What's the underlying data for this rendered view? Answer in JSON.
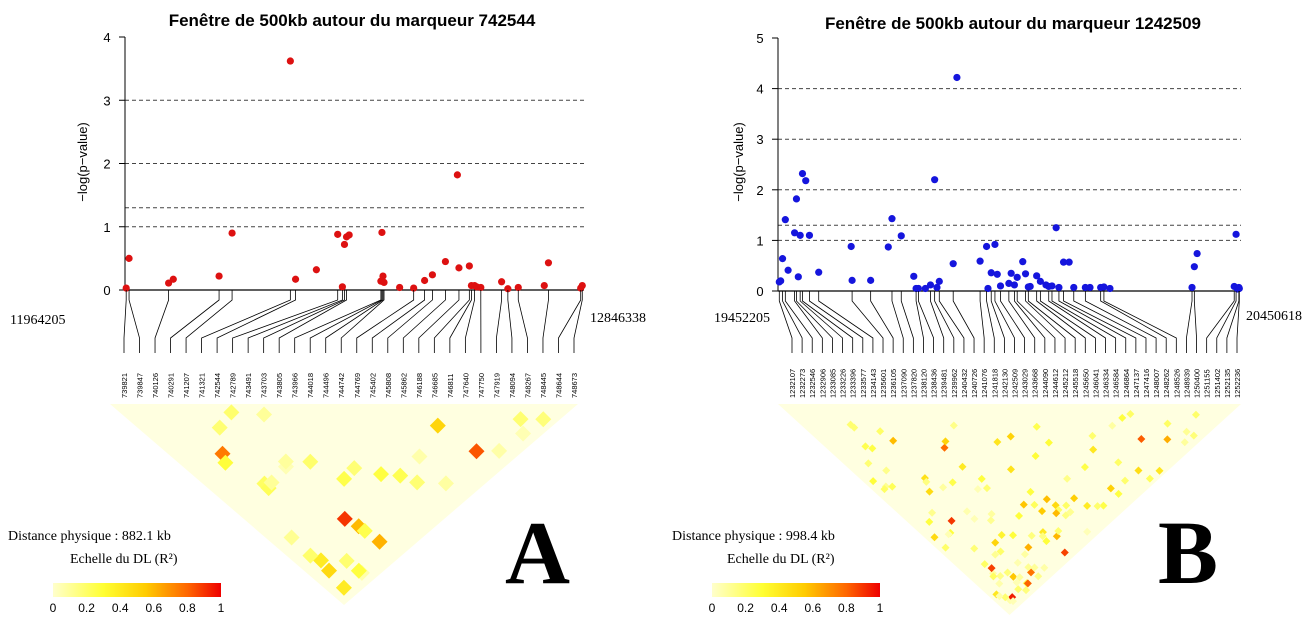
{
  "panels": [
    {
      "letter": "A",
      "title": "Fenêtre de 500kb autour du marqueur 742544",
      "ylabel": "−log(p−value)",
      "pos_start": "11964205",
      "pos_end": "12846338",
      "distance_label": "Distance physique : 882.1 kb",
      "ld_scale_label": "Echelle du DL (R²)",
      "scale_ticks": [
        "0",
        "0.2",
        "0.4",
        "0.6",
        "0.8",
        "1"
      ]
    },
    {
      "letter": "B",
      "title": "Fenêtre de 500kb autour du marqueur 1242509",
      "ylabel": "−log(p−value)",
      "pos_start": "19452205",
      "pos_end": "20450618",
      "distance_label": "Distance physique : 998.4 kb",
      "ld_scale_label": "Echelle du DL (R²)",
      "scale_ticks": [
        "0",
        "0.2",
        "0.4",
        "0.6",
        "0.8",
        "1"
      ]
    }
  ],
  "chart_data": [
    {
      "type": "scatter",
      "title": "Fenêtre de 500kb autour du marqueur 742544",
      "ylabel": "−log(p−value)",
      "ylim": [
        0,
        4
      ],
      "yticks": [
        0,
        1,
        2,
        3,
        4
      ],
      "hlines": [
        1,
        1.3,
        2,
        3
      ],
      "xlim": [
        11964205,
        12846338
      ],
      "color": "#dd1111",
      "x": [
        11966500,
        11972000,
        12048000,
        12057000,
        12145000,
        12170000,
        12282000,
        12292000,
        12332000,
        12373000,
        12382000,
        12386000,
        12390000,
        12395000,
        12456000,
        12458000,
        12460000,
        12462000,
        12492000,
        12519000,
        12540000,
        12555000,
        12580000,
        12603000,
        12606000,
        12626000,
        12630000,
        12636000,
        12640000,
        12648000,
        12688000,
        12700000,
        12720000,
        12770000,
        12778000,
        12840000,
        12843000
      ],
      "y": [
        0.03,
        0.5,
        0.11,
        0.17,
        0.22,
        0.9,
        3.62,
        0.17,
        0.32,
        0.88,
        0.05,
        0.72,
        0.84,
        0.87,
        0.14,
        0.91,
        0.22,
        0.12,
        0.04,
        0.03,
        0.15,
        0.24,
        0.45,
        1.82,
        0.35,
        0.38,
        0.07,
        0.07,
        0.05,
        0.04,
        0.13,
        0.02,
        0.04,
        0.07,
        0.43,
        0.03,
        0.07
      ],
      "marker_labels": [
        "739821",
        "739847",
        "740126",
        "740291",
        "741207",
        "741321",
        "742544",
        "742789",
        "743491",
        "743703",
        "743805",
        "743966",
        "744018",
        "744496",
        "744742",
        "744769",
        "745402",
        "745808",
        "745862",
        "746188",
        "746685",
        "746811",
        "747640",
        "747750",
        "747919",
        "748094",
        "748267",
        "748445",
        "748644",
        "748673"
      ]
    },
    {
      "type": "scatter",
      "title": "Fenêtre de 500kb autour du marqueur 1242509",
      "ylabel": "−log(p−value)",
      "ylim": [
        0,
        5
      ],
      "yticks": [
        0,
        1,
        2,
        3,
        4,
        5
      ],
      "hlines": [
        1,
        1.3,
        2,
        3,
        4
      ],
      "xlim": [
        19452205,
        20450618
      ],
      "color": "#1515dd",
      "x": [
        19455000,
        19458000,
        19462000,
        19468000,
        19474000,
        19488000,
        19492000,
        19496000,
        19500000,
        19505000,
        19512000,
        19520000,
        19540000,
        19610000,
        19612000,
        19652000,
        19690000,
        19698000,
        19718000,
        19745000,
        19750000,
        19755000,
        19770000,
        19781000,
        19790000,
        19795000,
        19800000,
        19830000,
        19838000,
        19888000,
        19902000,
        19905000,
        19912000,
        19920000,
        19925000,
        19932000,
        19950000,
        19955000,
        19962000,
        19968000,
        19980000,
        19986000,
        19992000,
        19996000,
        20010000,
        20018000,
        20030000,
        20036000,
        20043000,
        20052000,
        20058000,
        20068000,
        20080000,
        20090000,
        20115000,
        20125000,
        20148000,
        20155000,
        20168000,
        20345000,
        20350000,
        20356000,
        20436000,
        20440000,
        20443000,
        20446000,
        20447000
      ],
      "y": [
        0.18,
        0.2,
        0.64,
        1.41,
        0.41,
        1.15,
        1.82,
        0.28,
        1.1,
        2.32,
        2.18,
        1.1,
        0.37,
        0.88,
        0.21,
        0.21,
        0.87,
        1.43,
        1.09,
        0.29,
        0.05,
        0.05,
        0.05,
        0.12,
        2.2,
        0.07,
        0.19,
        0.54,
        4.22,
        0.59,
        0.88,
        0.05,
        0.36,
        0.92,
        0.33,
        0.1,
        0.15,
        0.35,
        0.12,
        0.27,
        0.58,
        0.34,
        0.08,
        0.09,
        0.3,
        0.19,
        0.12,
        0.09,
        0.1,
        1.25,
        0.07,
        0.57,
        0.57,
        0.07,
        0.07,
        0.07,
        0.07,
        0.08,
        0.05,
        0.07,
        0.48,
        0.74,
        0.09,
        1.12,
        0.04,
        0.07,
        0.05
      ],
      "marker_labels": [
        "1232107",
        "1232273",
        "1232546",
        "1232906",
        "1233085",
        "1233226",
        "1233396",
        "1233577",
        "1234143",
        "1235601",
        "1236105",
        "1237090",
        "1237820",
        "1238120",
        "1238436",
        "1239481",
        "1239962",
        "1240432",
        "1240726",
        "1241076",
        "1241818",
        "1242130",
        "1242509",
        "1243029",
        "1243668",
        "1244090",
        "1244612",
        "1245212",
        "1245518",
        "1245650",
        "1246041",
        "1246334",
        "1246584",
        "1246864",
        "1247137",
        "1247416",
        "1248007",
        "1248262",
        "1248526",
        "1248939",
        "1250400",
        "1251155",
        "1251402",
        "1252135",
        "1252236"
      ]
    }
  ]
}
